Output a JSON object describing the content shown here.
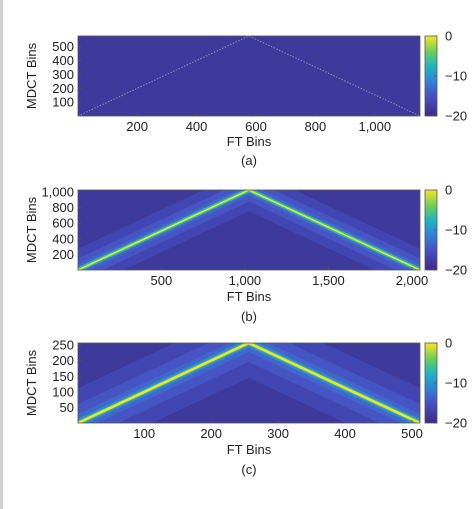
{
  "chart_data": [
    {
      "type": "heatmap",
      "panel": "(a)",
      "xlabel": "FT Bins",
      "ylabel": "MDCT Bins",
      "xlim": [
        1,
        1152
      ],
      "ylim": [
        1,
        576
      ],
      "xticks": [
        200,
        400,
        600,
        800,
        1000
      ],
      "xtick_labels": [
        "200",
        "400",
        "600",
        "800",
        "1,000"
      ],
      "yticks": [
        100,
        200,
        300,
        400,
        500
      ],
      "ytick_labels": [
        "100",
        "200",
        "300",
        "400",
        "500"
      ],
      "peak": {
        "x": 576,
        "y": 576
      },
      "ridge_points": [
        [
          1,
          1
        ],
        [
          576,
          576
        ],
        [
          1152,
          1
        ]
      ],
      "spread": 0.15,
      "colorbar": {
        "ticks": [
          0,
          -10,
          -20
        ],
        "tick_labels": [
          "0",
          "−10",
          "−20"
        ],
        "range": [
          -20,
          0
        ]
      }
    },
    {
      "type": "heatmap",
      "panel": "(b)",
      "xlabel": "FT Bins",
      "ylabel": "MDCT Bins",
      "xlim": [
        1,
        2048
      ],
      "ylim": [
        1,
        1024
      ],
      "xticks": [
        500,
        1000,
        1500,
        2000
      ],
      "xtick_labels": [
        "500",
        "1,000",
        "1,500",
        "2,000"
      ],
      "yticks": [
        200,
        400,
        600,
        800,
        1000
      ],
      "ytick_labels": [
        "200",
        "400",
        "600",
        "800",
        "1,000"
      ],
      "peak": {
        "x": 1024,
        "y": 1024
      },
      "ridge_points": [
        [
          1,
          1
        ],
        [
          1024,
          1024
        ],
        [
          2048,
          1
        ]
      ],
      "spread": 0.55,
      "colorbar": {
        "ticks": [
          0,
          -10,
          -20
        ],
        "tick_labels": [
          "0",
          "−10",
          "−20"
        ],
        "range": [
          -20,
          0
        ]
      }
    },
    {
      "type": "heatmap",
      "panel": "(c)",
      "xlabel": "FT Bins",
      "ylabel": "MDCT Bins",
      "xlim": [
        1,
        512
      ],
      "ylim": [
        1,
        256
      ],
      "xticks": [
        100,
        200,
        300,
        400,
        500
      ],
      "xtick_labels": [
        "100",
        "200",
        "300",
        "400",
        "500"
      ],
      "yticks": [
        50,
        100,
        150,
        200,
        250
      ],
      "ytick_labels": [
        "50",
        "100",
        "150",
        "200",
        "250"
      ],
      "peak": {
        "x": 256,
        "y": 256
      },
      "ridge_points": [
        [
          1,
          1
        ],
        [
          256,
          256
        ],
        [
          512,
          1
        ]
      ],
      "spread": 0.9,
      "colorbar": {
        "ticks": [
          0,
          -10,
          -20
        ],
        "tick_labels": [
          "0",
          "−10",
          "−20"
        ],
        "range": [
          -20,
          0
        ]
      }
    }
  ],
  "colors": {
    "background_low": "#3e3a9c",
    "background_mid": "#4650c6",
    "ridge_peak": "#f5e31c",
    "ridge_mid": "#22c4b0"
  }
}
